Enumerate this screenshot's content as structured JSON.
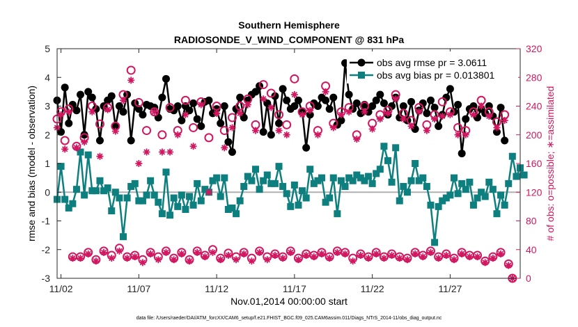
{
  "chart_data": {
    "type": "line",
    "title": "Southern Hemisphere",
    "subtitle": "RADIOSONDE_V_WIND_COMPONENT @ 831 hPa",
    "xlabel": "Nov.01,2014 00:00:00 start",
    "ylabel": "rmse and bias (model - observation)",
    "ylabel_right": "# of obs: o=possible; ∗=assimilated",
    "footnote": "data file: /Users/raeder/DAI/ATM_forcXX/CAM6_setup/f.e21.FHIST_BGC.f09_025.CAM6assim.011/Diags_NTrS_2014-11/obs_diag_output.nc",
    "x_start_day": 0.75,
    "x_step_days": 0.25,
    "xlim_days": [
      0.75,
      30.5
    ],
    "ylim": [
      -3,
      5
    ],
    "ylim_right": [
      0,
      320
    ],
    "x_ticks": [
      "11/02",
      "11/07",
      "11/12",
      "11/17",
      "11/22",
      "11/27"
    ],
    "x_tick_days": [
      1,
      6,
      11,
      16,
      21,
      26
    ],
    "y_ticks": [
      "-3",
      "-2",
      "-1",
      "0",
      "1",
      "2",
      "3",
      "4",
      "5"
    ],
    "y_ticks_right": [
      "0",
      "40",
      "80",
      "120",
      "160",
      "200",
      "240",
      "280",
      "320"
    ],
    "grid": false,
    "legend_position": "top-right",
    "colors": {
      "rmse": "#000000",
      "bias": "#0e7f7f",
      "obs": "#d0175f",
      "zero": "#b0b0b0"
    },
    "series": [
      {
        "name": "obs avg rmse pr = 3.0611",
        "marker": "filled-circle",
        "values": [
          3.2,
          2.1,
          3.65,
          2.4,
          3.05,
          2.85,
          3.4,
          2.0,
          3.5,
          3.3,
          2.9,
          1.8,
          3.0,
          3.2,
          3.35,
          2.3,
          3.0,
          2.8,
          3.4,
          1.8,
          3.1,
          2.9,
          2.7,
          3.05,
          3.0,
          2.95,
          2.6,
          3.3,
          3.95,
          2.9,
          2.85,
          3.0,
          2.5,
          3.0,
          2.85,
          3.1,
          2.55,
          2.3,
          3.15,
          3.2,
          2.75,
          2.9,
          2.4,
          3.0,
          1.75,
          1.4,
          2.9,
          3.3,
          2.6,
          3.2,
          3.4,
          3.5,
          3.7,
          2.1,
          3.1,
          2.0,
          3.35,
          2.4,
          3.6,
          3.2,
          2.9,
          3.0,
          3.2,
          2.8,
          1.55,
          2.7,
          3.1,
          3.0,
          3.3,
          3.2,
          2.9,
          3.3,
          2.35,
          2.5,
          4.5,
          3.4,
          2.9,
          3.1,
          2.75,
          3.05,
          2.8,
          3.0,
          3.2,
          3.4,
          3.1,
          2.7,
          3.0,
          3.3,
          2.6,
          3.0,
          2.5,
          3.15,
          2.2,
          2.85,
          3.1,
          2.75,
          3.2,
          2.95,
          2.3,
          2.7,
          3.3,
          3.6,
          2.8,
          3.05,
          1.35,
          2.55,
          2.9,
          3.0,
          2.6,
          2.9,
          2.75,
          3.0,
          2.65,
          2.1,
          2.95,
          1.8
        ]
      },
      {
        "name": "obs avg bias pr = 0.013801",
        "marker": "filled-square",
        "values": [
          -0.25,
          0.9,
          -0.25,
          -0.55,
          -0.4,
          0.1,
          1.4,
          -0.1,
          1.3,
          0.05,
          0.05,
          0.4,
          0.05,
          0.15,
          -0.65,
          0.0,
          -0.2,
          -1.55,
          -0.2,
          0.2,
          0.3,
          -0.3,
          -0.3,
          -0.1,
          0.4,
          -0.1,
          -0.35,
          -0.75,
          0.7,
          -0.8,
          -0.2,
          -0.5,
          -0.1,
          -0.6,
          -0.15,
          -0.45,
          0.3,
          -0.3,
          0.1,
          0.0,
          0.4,
          0.5,
          -0.15,
          0.5,
          -0.6,
          -0.55,
          -0.75,
          -0.3,
          0.2,
          0.55,
          0.4,
          0.8,
          0.1,
          0.4,
          0.6,
          0.3,
          0.3,
          0.9,
          0.2,
          -0.05,
          -0.5,
          0.25,
          -0.45,
          0.05,
          -0.2,
          0.8,
          0.3,
          0.4,
          0.5,
          -0.35,
          -0.2,
          0.5,
          -0.75,
          0.4,
          0.2,
          0.5,
          0.4,
          0.6,
          0.5,
          0.4,
          0.55,
          0.3,
          0.65,
          0.8,
          1.6,
          1.1,
          0.35,
          1.55,
          -0.3,
          0.2,
          0.0,
          0.4,
          1.0,
          0.4,
          0.5,
          0.2,
          -0.45,
          -1.75,
          -0.5,
          -0.3,
          -0.2,
          -0.1,
          0.5,
          -0.05,
          0.3,
          0.1,
          0.35,
          -0.45,
          -0.2,
          0.0,
          -0.15,
          0.35,
          0.1,
          -0.75,
          -0.1,
          -0.45,
          0.3,
          1.25,
          0.55,
          0.85,
          0.6
        ]
      },
      {
        "name": "possible",
        "axis": "right",
        "marker": "open-circle",
        "values": [
          222,
          232,
          192,
          236,
          30,
          184,
          30,
          196,
          36,
          240,
          26,
          215,
          38,
          238,
          32,
          212,
          42,
          256,
          30,
          290,
          32,
          245,
          26,
          206,
          36,
          232,
          30,
          200,
          38,
          238,
          28,
          206,
          36,
          248,
          26,
          210,
          38,
          246,
          32,
          196,
          40,
          240,
          28,
          206,
          35,
          224,
          30,
          240,
          36,
          250,
          28,
          214,
          38,
          270,
          30,
          258,
          34,
          228,
          30,
          214,
          38,
          278,
          28,
          232,
          34,
          240,
          32,
          206,
          36,
          268,
          30,
          216,
          38,
          232,
          36,
          238,
          28,
          200,
          34,
          240,
          30,
          216,
          36,
          228,
          30,
          234,
          34,
          256,
          30,
          230,
          28,
          220,
          36,
          238,
          32,
          214,
          38,
          228,
          30,
          246,
          34,
          232,
          28,
          210,
          36,
          206,
          32,
          232,
          32,
          248,
          24,
          232,
          30,
          218,
          36,
          228,
          20,
          0
        ]
      },
      {
        "name": "assimilated",
        "axis": "right",
        "marker": "asterisk",
        "values": [
          210,
          228,
          180,
          232,
          28,
          182,
          28,
          190,
          34,
          232,
          24,
          170,
          36,
          235,
          28,
          205,
          38,
          248,
          28,
          276,
          30,
          160,
          22,
          176,
          34,
          232,
          26,
          176,
          36,
          176,
          26,
          200,
          34,
          228,
          24,
          184,
          36,
          242,
          30,
          120,
          36,
          230,
          26,
          182,
          32,
          210,
          26,
          230,
          34,
          242,
          24,
          206,
          36,
          250,
          26,
          238,
          32,
          206,
          28,
          200,
          36,
          256,
          26,
          228,
          32,
          234,
          30,
          200,
          34,
          260,
          28,
          210,
          36,
          228,
          34,
          232,
          24,
          194,
          32,
          232,
          28,
          208,
          34,
          222,
          28,
          230,
          32,
          250,
          28,
          222,
          26,
          212,
          34,
          232,
          30,
          206,
          36,
          222,
          28,
          226,
          32,
          228,
          26,
          200,
          34,
          200,
          30,
          228,
          30,
          240,
          22,
          226,
          28,
          210,
          34,
          220,
          18,
          0
        ]
      }
    ]
  }
}
